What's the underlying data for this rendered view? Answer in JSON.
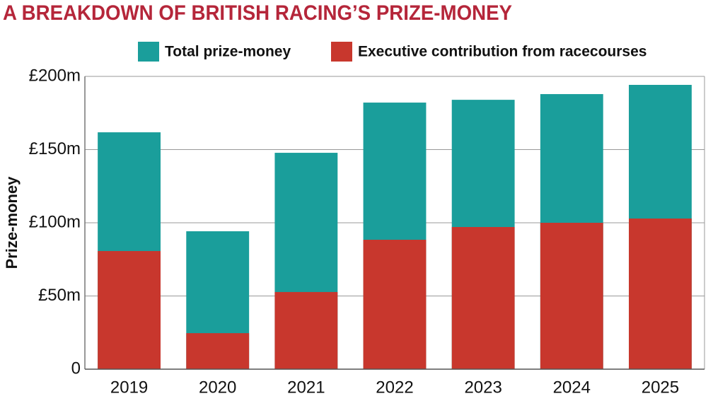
{
  "chart_data": {
    "type": "bar",
    "title": "A BREAKDOWN OF BRITISH RACING’S PRIZE-MONEY",
    "y_label": "Prize-money",
    "categories": [
      "2019",
      "2020",
      "2021",
      "2022",
      "2023",
      "2024",
      "2025"
    ],
    "series": [
      {
        "name": "Total prize-money",
        "color": "#1a9e9b",
        "values": [
          161.8,
          94.2,
          147.8,
          182.1,
          184,
          187.9,
          194.2
        ]
      },
      {
        "name": "Executive contribution from racecourses",
        "color": "#c8372d",
        "values": [
          80.7,
          24.6,
          52.7,
          88.4,
          97.1,
          100,
          102.9
        ]
      }
    ],
    "ylim": [
      0,
      200
    ],
    "yticks": [
      0,
      {
        "value": 50,
        "label": "£50m"
      },
      {
        "value": 100,
        "label": "£100m"
      },
      {
        "value": 150,
        "label": "£150m"
      },
      {
        "value": 200,
        "label": "£200m"
      }
    ],
    "grid": true
  }
}
